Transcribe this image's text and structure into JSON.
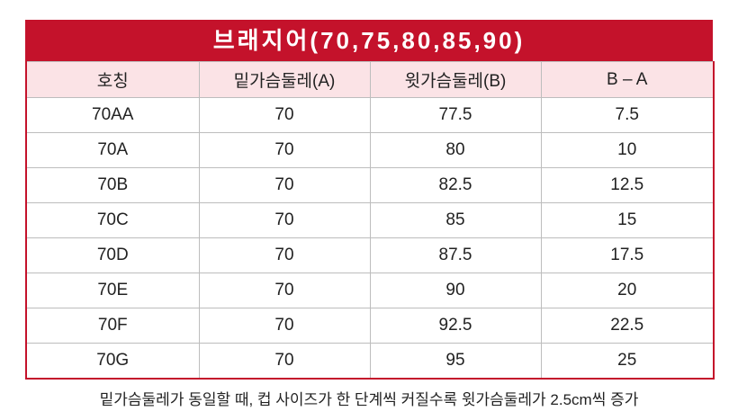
{
  "title": "브래지어(70,75,80,85,90)",
  "table": {
    "header": [
      "호칭",
      "밑가슴둘레(A)",
      "윗가슴둘레(B)",
      "B – A"
    ],
    "rows": [
      [
        "70AA",
        "70",
        "77.5",
        "7.5"
      ],
      [
        "70A",
        "70",
        "80",
        "10"
      ],
      [
        "70B",
        "70",
        "82.5",
        "12.5"
      ],
      [
        "70C",
        "70",
        "85",
        "15"
      ],
      [
        "70D",
        "70",
        "87.5",
        "17.5"
      ],
      [
        "70E",
        "70",
        "90",
        "20"
      ],
      [
        "70F",
        "70",
        "92.5",
        "22.5"
      ],
      [
        "70G",
        "70",
        "95",
        "25"
      ]
    ]
  },
  "caption": "밑가슴둘레가 동일할 때, 컵 사이즈가 한 단계씩 커질수록 윗가슴둘레가 2.5cm씩 증가"
}
